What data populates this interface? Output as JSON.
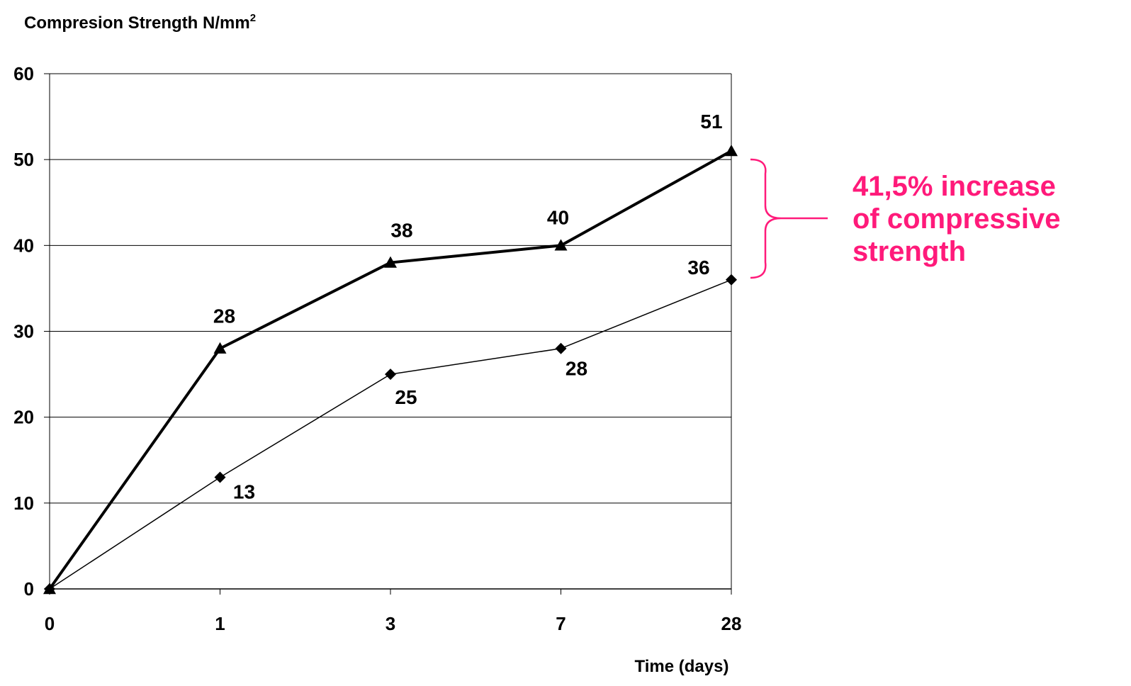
{
  "chart_data": {
    "type": "line",
    "title": "Compresion Strength N/mm",
    "title_superscript": "2",
    "xlabel": "Time (days)",
    "ylabel": "",
    "categories": [
      "0",
      "1",
      "3",
      "7",
      "28"
    ],
    "ylim": [
      0,
      60
    ],
    "yticks": [
      "0",
      "10",
      "20",
      "30",
      "40",
      "50",
      "60"
    ],
    "grid": true,
    "series": [
      {
        "marker": "triangle",
        "style": "thick",
        "values": [
          0,
          28,
          38,
          40,
          51
        ],
        "labels": [
          "",
          "28",
          "38",
          "40",
          "51"
        ]
      },
      {
        "marker": "diamond",
        "style": "thin",
        "values": [
          0,
          13,
          25,
          28,
          36
        ],
        "labels": [
          "",
          "13",
          "25",
          "28",
          "36"
        ]
      }
    ],
    "annotation": {
      "lines": [
        "41,5% increase",
        "of compressive",
        "strength"
      ],
      "color": "#ff1a7a"
    }
  }
}
